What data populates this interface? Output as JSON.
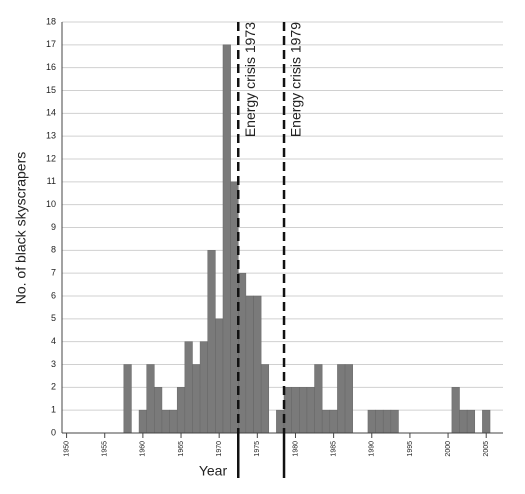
{
  "chart_data": {
    "type": "bar",
    "x": [
      1950,
      1951,
      1952,
      1953,
      1954,
      1955,
      1956,
      1957,
      1958,
      1959,
      1960,
      1961,
      1962,
      1963,
      1964,
      1965,
      1966,
      1967,
      1968,
      1969,
      1970,
      1971,
      1972,
      1973,
      1974,
      1975,
      1976,
      1977,
      1978,
      1979,
      1980,
      1981,
      1982,
      1983,
      1984,
      1985,
      1986,
      1987,
      1988,
      1989,
      1990,
      1991,
      1992,
      1993,
      1994,
      1995,
      1996,
      1997,
      1998,
      1999,
      2000,
      2001,
      2002,
      2003,
      2004,
      2005,
      2006
    ],
    "values": [
      0,
      0,
      0,
      0,
      0,
      0,
      0,
      0,
      3,
      0,
      1,
      3,
      2,
      1,
      1,
      2,
      4,
      3,
      4,
      8,
      5,
      17,
      11,
      7,
      6,
      6,
      3,
      0,
      1,
      2,
      2,
      2,
      2,
      3,
      1,
      1,
      3,
      3,
      0,
      0,
      1,
      1,
      1,
      1,
      0,
      0,
      0,
      0,
      0,
      0,
      0,
      2,
      1,
      1,
      0,
      1,
      0
    ],
    "color": "#7a7a7a",
    "xlabel": "Year",
    "ylabel": "No. of black skyscrapers",
    "xlim": [
      1949.4,
      2007.2
    ],
    "xticks": [
      1950,
      1955,
      1960,
      1965,
      1970,
      1975,
      1980,
      1985,
      1990,
      1995,
      2000,
      2005
    ],
    "ylim": [
      0,
      18
    ],
    "yticks": [
      0,
      1,
      2,
      3,
      4,
      5,
      6,
      7,
      8,
      9,
      10,
      11,
      12,
      13,
      14,
      15,
      16,
      17,
      18
    ],
    "grid": true,
    "annotations": [
      {
        "x": 1973,
        "label": "Energy crisis 1973"
      },
      {
        "x": 1979,
        "label": "Energy crisis 1979"
      }
    ]
  }
}
